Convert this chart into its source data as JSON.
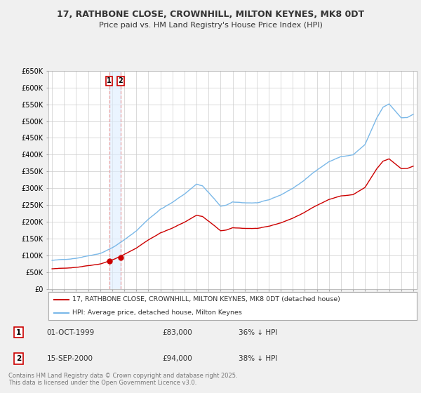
{
  "title": "17, RATHBONE CLOSE, CROWNHILL, MILTON KEYNES, MK8 0DT",
  "subtitle": "Price paid vs. HM Land Registry's House Price Index (HPI)",
  "legend_line1": "17, RATHBONE CLOSE, CROWNHILL, MILTON KEYNES, MK8 0DT (detached house)",
  "legend_line2": "HPI: Average price, detached house, Milton Keynes",
  "sale1_date": "01-OCT-1999",
  "sale1_price": "£83,000",
  "sale1_hpi": "36% ↓ HPI",
  "sale2_date": "15-SEP-2000",
  "sale2_price": "£94,000",
  "sale2_hpi": "38% ↓ HPI",
  "footnote": "Contains HM Land Registry data © Crown copyright and database right 2025.\nThis data is licensed under the Open Government Licence v3.0.",
  "hpi_color": "#7ab8e8",
  "sale_color": "#cc0000",
  "vline_color": "#e8a0a0",
  "shade_color": "#ddeeff",
  "sale1_x": 1999.75,
  "sale1_y": 83000,
  "sale2_x": 2000.7,
  "sale2_y": 94000,
  "ylim": [
    0,
    650000
  ],
  "yticks": [
    0,
    50000,
    100000,
    150000,
    200000,
    250000,
    300000,
    350000,
    400000,
    450000,
    500000,
    550000,
    600000,
    650000
  ],
  "ytick_labels": [
    "£0",
    "£50K",
    "£100K",
    "£150K",
    "£200K",
    "£250K",
    "£300K",
    "£350K",
    "£400K",
    "£450K",
    "£500K",
    "£550K",
    "£600K",
    "£650K"
  ],
  "xlim_left": 1994.7,
  "xlim_right": 2025.3,
  "background_color": "#f0f0f0",
  "plot_bg_color": "#ffffff"
}
